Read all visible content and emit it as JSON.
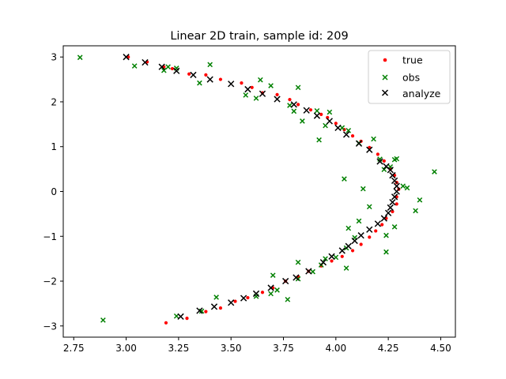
{
  "chart_data": {
    "type": "scatter",
    "title": "Linear 2D train, sample id: 209",
    "xlim": [
      2.7,
      4.57
    ],
    "ylim": [
      -3.25,
      3.25
    ],
    "xticks": [
      "2.75",
      "3.00",
      "3.25",
      "3.50",
      "3.75",
      "4.00",
      "4.25",
      "4.50"
    ],
    "yticks": [
      "3",
      "2",
      "1",
      "0",
      "−1",
      "−2",
      "−3"
    ],
    "legend_position": "top-right",
    "grid": false,
    "series": [
      {
        "name": "true",
        "marker": "dot",
        "color": "#ff0000",
        "points": [
          [
            3.01,
            3.0
          ],
          [
            3.1,
            2.89
          ],
          [
            3.18,
            2.78
          ],
          [
            3.22,
            2.74
          ],
          [
            3.3,
            2.62
          ],
          [
            3.38,
            2.6
          ],
          [
            3.45,
            2.5
          ],
          [
            3.55,
            2.42
          ],
          [
            3.6,
            2.32
          ],
          [
            3.65,
            2.2
          ],
          [
            3.72,
            2.16
          ],
          [
            3.78,
            2.05
          ],
          [
            3.82,
            1.94
          ],
          [
            3.88,
            1.82
          ],
          [
            3.93,
            1.72
          ],
          [
            3.96,
            1.65
          ],
          [
            4.0,
            1.52
          ],
          [
            4.04,
            1.38
          ],
          [
            4.08,
            1.24
          ],
          [
            4.12,
            1.12
          ],
          [
            4.16,
            0.98
          ],
          [
            4.2,
            0.83
          ],
          [
            4.23,
            0.68
          ],
          [
            4.26,
            0.5
          ],
          [
            4.28,
            0.36
          ],
          [
            4.29,
            0.2
          ],
          [
            4.3,
            0.05
          ],
          [
            4.29,
            -0.12
          ],
          [
            4.29,
            -0.28
          ],
          [
            4.27,
            -0.45
          ],
          [
            4.24,
            -0.6
          ],
          [
            4.22,
            -0.74
          ],
          [
            4.19,
            -0.88
          ],
          [
            4.16,
            -1.02
          ],
          [
            4.12,
            -1.18
          ],
          [
            4.08,
            -1.32
          ],
          [
            4.03,
            -1.45
          ],
          [
            3.98,
            -1.55
          ],
          [
            3.93,
            -1.66
          ],
          [
            3.87,
            -1.78
          ],
          [
            3.82,
            -1.9
          ],
          [
            3.76,
            -2.0
          ],
          [
            3.7,
            -2.15
          ],
          [
            3.65,
            -2.25
          ],
          [
            3.58,
            -2.37
          ],
          [
            3.52,
            -2.45
          ],
          [
            3.45,
            -2.6
          ],
          [
            3.38,
            -2.68
          ],
          [
            3.29,
            -2.83
          ],
          [
            3.19,
            -2.93
          ]
        ]
      },
      {
        "name": "obs",
        "marker": "x",
        "color": "#008000",
        "points": [
          [
            2.78,
            2.99
          ],
          [
            3.04,
            2.8
          ],
          [
            3.18,
            2.7
          ],
          [
            3.2,
            2.78
          ],
          [
            3.24,
            2.75
          ],
          [
            3.35,
            2.42
          ],
          [
            3.4,
            2.83
          ],
          [
            3.57,
            2.15
          ],
          [
            3.62,
            2.08
          ],
          [
            3.64,
            2.49
          ],
          [
            3.69,
            2.36
          ],
          [
            3.78,
            1.92
          ],
          [
            3.82,
            2.32
          ],
          [
            3.8,
            1.79
          ],
          [
            3.84,
            1.57
          ],
          [
            3.91,
            1.8
          ],
          [
            3.92,
            1.15
          ],
          [
            3.97,
            1.77
          ],
          [
            3.95,
            1.47
          ],
          [
            4.03,
            1.42
          ],
          [
            4.06,
            1.36
          ],
          [
            4.11,
            1.08
          ],
          [
            4.18,
            1.17
          ],
          [
            4.21,
            0.72
          ],
          [
            4.23,
            0.49
          ],
          [
            4.26,
            0.55
          ],
          [
            4.28,
            0.71
          ],
          [
            4.29,
            0.73
          ],
          [
            4.32,
            0.12
          ],
          [
            4.34,
            0.08
          ],
          [
            4.4,
            -0.19
          ],
          [
            4.47,
            0.44
          ],
          [
            4.04,
            0.28
          ],
          [
            4.13,
            0.06
          ],
          [
            4.16,
            -0.34
          ],
          [
            4.11,
            -0.66
          ],
          [
            4.38,
            -0.43
          ],
          [
            4.28,
            -0.79
          ],
          [
            4.24,
            -0.98
          ],
          [
            4.06,
            -0.82
          ],
          [
            4.09,
            -1.03
          ],
          [
            4.24,
            -1.35
          ],
          [
            4.05,
            -1.26
          ],
          [
            4.0,
            -1.47
          ],
          [
            4.05,
            -1.71
          ],
          [
            3.95,
            -1.5
          ],
          [
            3.93,
            -1.64
          ],
          [
            3.89,
            -1.79
          ],
          [
            3.82,
            -1.58
          ],
          [
            3.82,
            -1.95
          ],
          [
            3.72,
            -2.2
          ],
          [
            3.77,
            -2.41
          ],
          [
            3.69,
            -2.28
          ],
          [
            3.62,
            -2.34
          ],
          [
            3.43,
            -2.36
          ],
          [
            3.36,
            -2.67
          ],
          [
            3.24,
            -2.78
          ],
          [
            2.89,
            -2.87
          ],
          [
            3.7,
            -1.87
          ]
        ]
      },
      {
        "name": "analyze",
        "marker": "x",
        "color": "#000000",
        "points": [
          [
            3.0,
            3.0
          ],
          [
            3.09,
            2.88
          ],
          [
            3.17,
            2.78
          ],
          [
            3.24,
            2.69
          ],
          [
            3.32,
            2.6
          ],
          [
            3.4,
            2.5
          ],
          [
            3.5,
            2.4
          ],
          [
            3.58,
            2.28
          ],
          [
            3.65,
            2.18
          ],
          [
            3.72,
            2.06
          ],
          [
            3.8,
            1.94
          ],
          [
            3.86,
            1.81
          ],
          [
            3.91,
            1.69
          ],
          [
            3.97,
            1.57
          ],
          [
            4.01,
            1.42
          ],
          [
            4.05,
            1.27
          ],
          [
            4.11,
            1.07
          ],
          [
            4.16,
            0.93
          ],
          [
            4.21,
            0.67
          ],
          [
            4.24,
            0.56
          ],
          [
            4.26,
            0.48
          ],
          [
            4.27,
            0.36
          ],
          [
            4.28,
            0.24
          ],
          [
            4.29,
            0.12
          ],
          [
            4.29,
            0.0
          ],
          [
            4.28,
            -0.12
          ],
          [
            4.27,
            -0.24
          ],
          [
            4.26,
            -0.36
          ],
          [
            4.25,
            -0.48
          ],
          [
            4.23,
            -0.6
          ],
          [
            4.2,
            -0.72
          ],
          [
            4.16,
            -0.85
          ],
          [
            4.12,
            -0.98
          ],
          [
            4.09,
            -1.1
          ],
          [
            4.06,
            -1.22
          ],
          [
            4.03,
            -1.32
          ],
          [
            3.98,
            -1.45
          ],
          [
            3.94,
            -1.58
          ],
          [
            3.87,
            -1.78
          ],
          [
            3.81,
            -1.92
          ],
          [
            3.76,
            -2.0
          ],
          [
            3.69,
            -2.15
          ],
          [
            3.62,
            -2.28
          ],
          [
            3.56,
            -2.38
          ],
          [
            3.5,
            -2.48
          ],
          [
            3.42,
            -2.57
          ],
          [
            3.35,
            -2.66
          ],
          [
            3.26,
            -2.79
          ]
        ]
      }
    ]
  }
}
